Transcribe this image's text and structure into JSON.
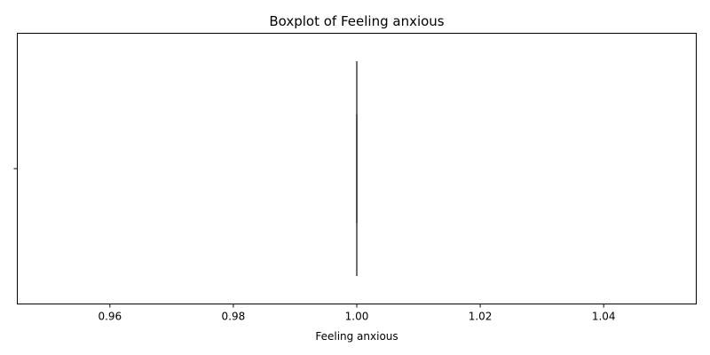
{
  "chart_data": {
    "type": "box",
    "orientation": "horizontal",
    "title": "Boxplot of Feeling anxious",
    "xlabel": "Feeling anxious",
    "ylabel": "",
    "xlim": [
      0.945,
      1.055
    ],
    "xticks": [
      0.96,
      0.98,
      1.0,
      1.02,
      1.04
    ],
    "xtick_labels": [
      "0.96",
      "0.98",
      "1.00",
      "1.02",
      "1.04"
    ],
    "grid": false,
    "series": [
      {
        "whisker_low": 1.0,
        "q1": 1.0,
        "median": 1.0,
        "q3": 1.0,
        "whisker_high": 1.0
      }
    ],
    "colors": {
      "box": "#3f3f3f",
      "axes": "#000000"
    }
  }
}
